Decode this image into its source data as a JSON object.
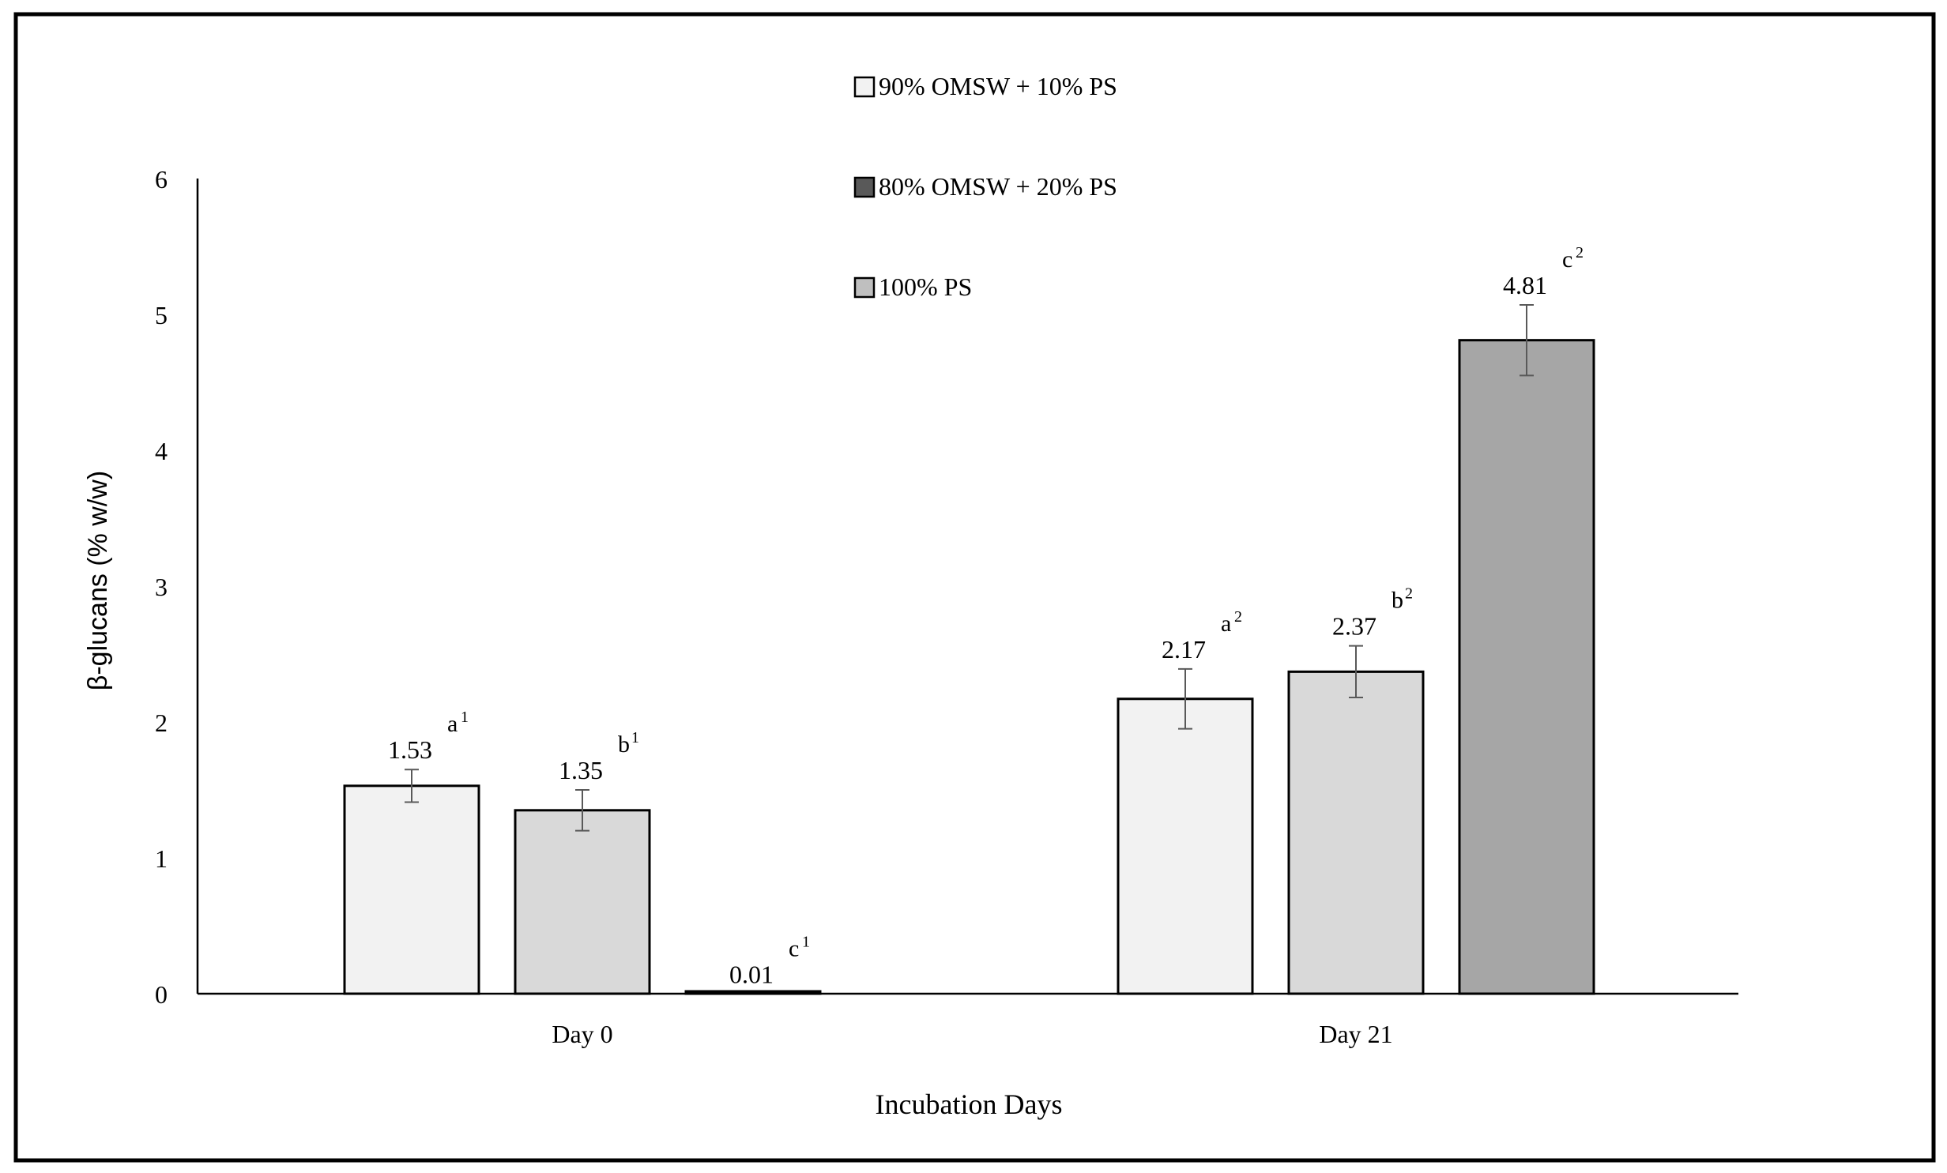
{
  "chart_data": {
    "type": "bar",
    "xlabel": "Incubation Days",
    "ylabel": "β-glucans (% w/w)",
    "categories": [
      "Day 0",
      "Day 21"
    ],
    "ylim": [
      0,
      6
    ],
    "yticks": [
      "0",
      "1",
      "2",
      "3",
      "4",
      "5",
      "6"
    ],
    "grid": false,
    "legend_position": "top-center",
    "series": [
      {
        "name": "90% OMSW + 10% PS",
        "color": "#f2f2f2",
        "values": [
          1.53,
          2.17
        ],
        "errors": [
          0.12,
          0.22
        ],
        "value_labels": [
          "1.53",
          "2.17"
        ],
        "letters": [
          "a",
          "a"
        ],
        "superscripts": [
          "1",
          "2"
        ]
      },
      {
        "name": "80% OMSW + 20% PS",
        "color": "#d9d9d9",
        "legend_color": "#595959",
        "values": [
          1.35,
          2.37
        ],
        "errors": [
          0.15,
          0.19
        ],
        "value_labels": [
          "1.35",
          "2.37"
        ],
        "letters": [
          "b",
          "b"
        ],
        "superscripts": [
          "1",
          "2"
        ]
      },
      {
        "name": "100% PS",
        "color": "#a6a6a6",
        "legend_color": "#bfbfbf",
        "values": [
          0.01,
          4.81
        ],
        "errors": [
          0.0,
          0.26
        ],
        "value_labels": [
          "0.01",
          "4.81"
        ],
        "letters": [
          "c",
          "c"
        ],
        "superscripts": [
          "1",
          "2"
        ]
      }
    ]
  }
}
